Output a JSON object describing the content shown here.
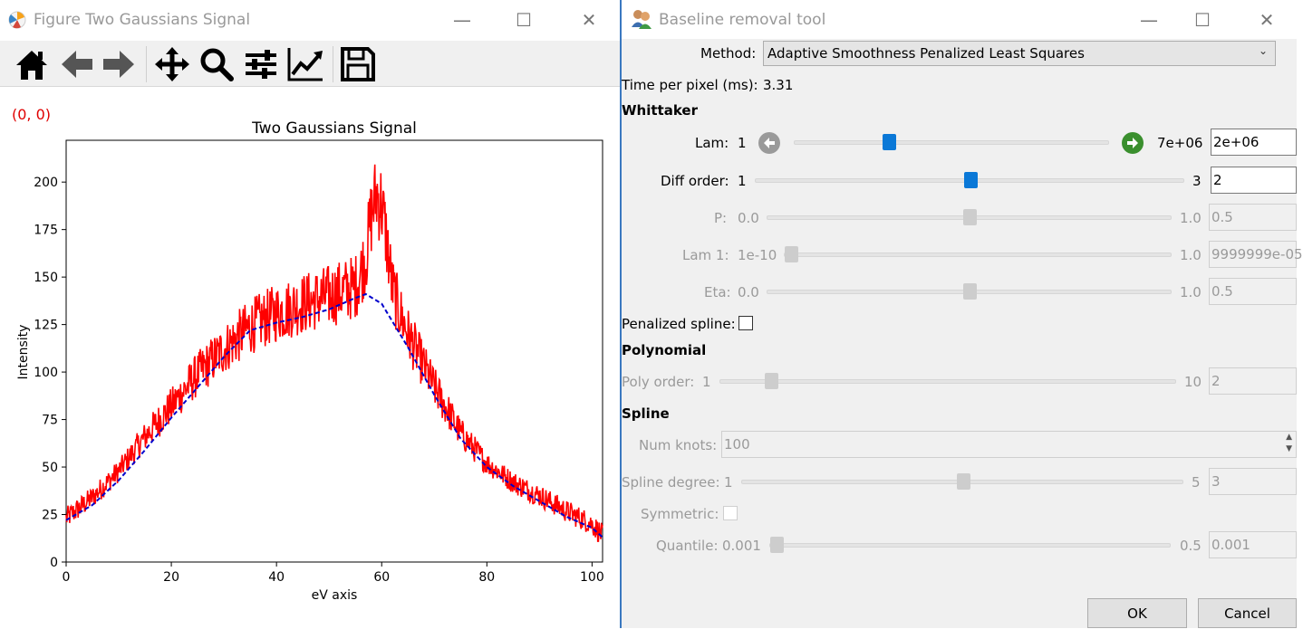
{
  "figure_window": {
    "title": "Figure Two Gaussians Signal",
    "toolbar": [
      "home-icon",
      "back-arrow-icon",
      "forward-arrow-icon",
      "pan-icon",
      "zoom-icon",
      "subplots-config-icon",
      "edit-axes-icon",
      "save-icon"
    ],
    "coordinate_readout": "(0, 0)"
  },
  "chart_data": {
    "type": "line",
    "title": "Two Gaussians Signal",
    "xlabel": "eV axis",
    "ylabel": "Intensity",
    "xlim": [
      0,
      102
    ],
    "ylim": [
      0,
      222
    ],
    "xticks": [
      0,
      20,
      40,
      60,
      80,
      100
    ],
    "yticks": [
      0,
      25,
      50,
      75,
      100,
      125,
      150,
      175,
      200
    ],
    "grid": false,
    "series": [
      {
        "style": "solid",
        "color": "#ff0000",
        "x": [
          0,
          5,
          10,
          15,
          20,
          25,
          30,
          35,
          40,
          45,
          50,
          55,
          57,
          58,
          59,
          60,
          61,
          62,
          63,
          65,
          70,
          75,
          80,
          85,
          90,
          95,
          100,
          102
        ],
        "y": [
          23,
          34,
          48,
          66,
          82,
          99,
          112,
          124,
          131,
          136,
          140,
          145,
          160,
          182,
          194,
          188,
          168,
          145,
          135,
          120,
          92,
          68,
          52,
          42,
          35,
          27,
          20,
          14
        ]
      },
      {
        "style": "dashed",
        "color": "#0000cc",
        "x": [
          0,
          5,
          10,
          15,
          20,
          25,
          30,
          35,
          40,
          45,
          50,
          55,
          57,
          60,
          65,
          70,
          75,
          80,
          85,
          90,
          95,
          100,
          102
        ],
        "y": [
          22,
          30,
          43,
          59,
          76,
          92,
          108,
          122,
          126,
          129,
          133,
          139,
          141,
          136,
          113,
          88,
          65,
          50,
          40,
          32,
          24,
          18,
          13
        ]
      }
    ]
  },
  "tool_window": {
    "title": "Baseline removal tool",
    "method_label": "Method:",
    "method_value": "Adaptive Smoothness Penalized Least Squares",
    "time_label": "Time per pixel (ms):",
    "time_value": "3.31",
    "whittaker": {
      "heading": "Whittaker",
      "lam": {
        "label": "Lam:",
        "min": "1",
        "max": "7e+06",
        "value": "2e+06",
        "level": 0.29
      },
      "diff_order": {
        "label": "Diff order:",
        "min": "1",
        "max": "3",
        "value": "2",
        "level": 0.5
      },
      "p": {
        "label": "P:",
        "min": "0.0",
        "max": "1.0",
        "value": "0.5",
        "level": 0.5
      },
      "lam1": {
        "label": "Lam 1:",
        "min": "1e-10",
        "max": "1.0",
        "value": "9999999e-05",
        "level": 0.0
      },
      "eta": {
        "label": "Eta:",
        "min": "0.0",
        "max": "1.0",
        "value": "0.5",
        "level": 0.5
      }
    },
    "penalized_spline_label": "Penalized spline:",
    "polynomial": {
      "heading": "Polynomial",
      "poly_order": {
        "label": "Poly order:",
        "min": "1",
        "max": "10",
        "value": "2",
        "level": 0.1
      }
    },
    "spline": {
      "heading": "Spline",
      "num_knots": {
        "label": "Num knots:",
        "value": "100"
      },
      "degree": {
        "label": "Spline degree:",
        "min": "1",
        "max": "5",
        "value": "3",
        "level": 0.5
      },
      "symmetric_label": "Symmetric:",
      "quantile": {
        "label": "Quantile:",
        "min": "0.001",
        "max": "0.5",
        "value": "0.001",
        "level": 0.0
      }
    },
    "ok_label": "OK",
    "cancel_label": "Cancel"
  }
}
